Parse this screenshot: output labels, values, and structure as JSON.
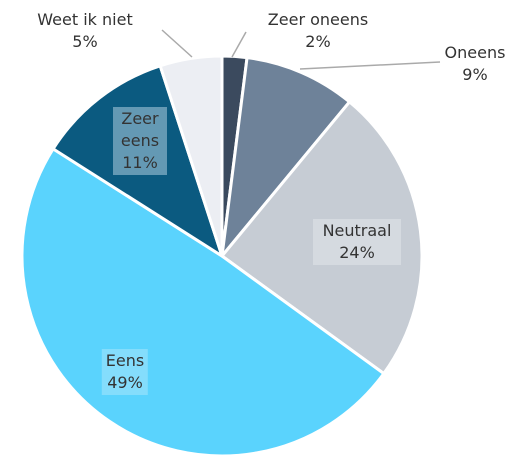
{
  "chart_data": {
    "type": "pie",
    "categories": [
      "Zeer oneens",
      "Oneens",
      "Neutraal",
      "Eens",
      "Zeer eens",
      "Weet ik niet"
    ],
    "values": [
      2,
      9,
      24,
      49,
      11,
      5
    ],
    "value_labels": [
      "2%",
      "9%",
      "24%",
      "49%",
      "11%",
      "5%"
    ],
    "colors": [
      "#3b4a5e",
      "#6e8299",
      "#c6ccd4",
      "#5ad3fd",
      "#0b5a80",
      "#eceef3"
    ]
  }
}
